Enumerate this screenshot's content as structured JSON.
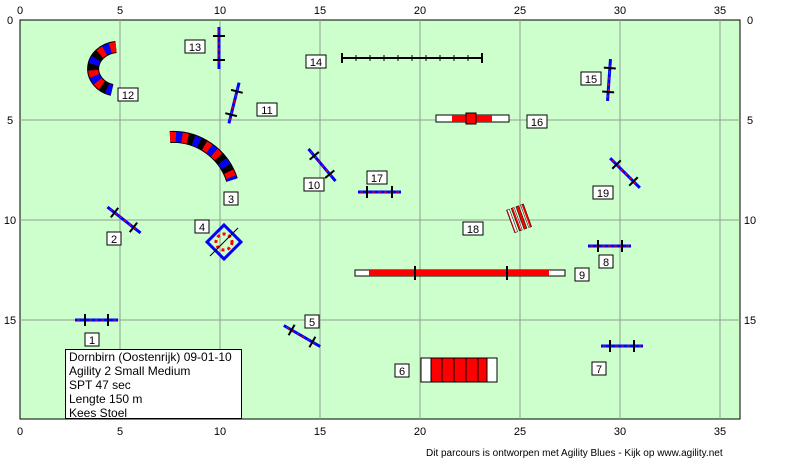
{
  "field": {
    "background": "#ccffcc",
    "grid_color": "#8f9f8f",
    "x_ticks": [
      "0",
      "5",
      "10",
      "15",
      "20",
      "25",
      "30",
      "35"
    ],
    "y_ticks": [
      "0",
      "5",
      "10",
      "15"
    ]
  },
  "colors": {
    "red": "#ff0000",
    "blue": "#0000ff",
    "white": "#ffffff",
    "black": "#000000"
  },
  "obstacles": [
    {
      "number": "1",
      "type": "jump-hurdle"
    },
    {
      "number": "2",
      "type": "jump-hurdle"
    },
    {
      "number": "3",
      "type": "curved-tunnel"
    },
    {
      "number": "4",
      "type": "tyre"
    },
    {
      "number": "5",
      "type": "jump-hurdle"
    },
    {
      "number": "6",
      "type": "chute"
    },
    {
      "number": "7",
      "type": "jump-hurdle"
    },
    {
      "number": "8",
      "type": "jump-hurdle"
    },
    {
      "number": "9",
      "type": "dog-walk"
    },
    {
      "number": "10",
      "type": "jump-hurdle"
    },
    {
      "number": "11",
      "type": "jump-hurdle"
    },
    {
      "number": "12",
      "type": "curved-tunnel"
    },
    {
      "number": "13",
      "type": "jump-hurdle"
    },
    {
      "number": "14",
      "type": "weave-poles"
    },
    {
      "number": "15",
      "type": "jump-hurdle"
    },
    {
      "number": "16",
      "type": "see-saw"
    },
    {
      "number": "17",
      "type": "jump-hurdle"
    },
    {
      "number": "18",
      "type": "long-jump"
    },
    {
      "number": "19",
      "type": "jump-hurdle"
    }
  ],
  "info": {
    "line1": "Dornbirn (Oostenrijk) 09-01-10",
    "line2": "Agility 2 Small Medium",
    "line3": "SPT 47 sec",
    "line4": "Lengte 150 m",
    "line5": "Kees Stoel"
  },
  "footer": "Dit parcours is ontworpen met Agility Blues - Kijk op www.agility.net"
}
